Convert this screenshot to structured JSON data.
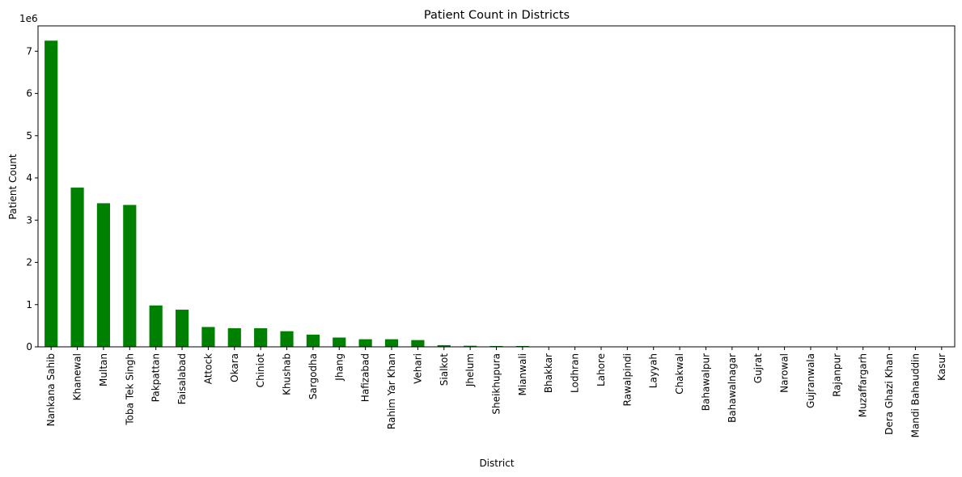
{
  "chart_data": {
    "type": "bar",
    "title": "Patient Count in Districts",
    "xlabel": "District",
    "ylabel": "Patient Count",
    "y_scale_note": "1e6",
    "ylim": [
      0,
      7.6
    ],
    "yticks": [
      0,
      1,
      2,
      3,
      4,
      5,
      6,
      7
    ],
    "grid": false,
    "legend": "none",
    "bar_color": "#008000",
    "categories": [
      "Nankana Sahib",
      "Khanewal",
      "Multan",
      "Toba Tek Singh",
      "Pakpattan",
      "Faisalabad",
      "Attock",
      "Okara",
      "Chiniot",
      "Khushab",
      "Sargodha",
      "Jhang",
      "Hafizabad",
      "Rahim Yar Khan",
      "Vehari",
      "Sialkot",
      "Jhelum",
      "Sheikhupura",
      "Mianwali",
      "Bhakkar",
      "Lodhran",
      "Lahore",
      "Rawalpindi",
      "Layyah",
      "Chakwal",
      "Bahawalpur",
      "Bahawalnagar",
      "Gujrat",
      "Narowal",
      "Gujranwala",
      "Rajanpur",
      "Muzaffargarh",
      "Dera Ghazi Khan",
      "Mandi Bahauddin",
      "Kasur"
    ],
    "values": [
      7.25,
      3.77,
      3.4,
      3.36,
      0.98,
      0.88,
      0.47,
      0.44,
      0.44,
      0.37,
      0.29,
      0.22,
      0.18,
      0.18,
      0.16,
      0.04,
      0.025,
      0.02,
      0.02,
      0.005,
      0.004,
      0.003,
      0.003,
      0.002,
      0.002,
      0.002,
      0.001,
      0.001,
      0.001,
      0.001,
      0.001,
      0.001,
      0.0005,
      0.0005,
      0.0003
    ]
  }
}
